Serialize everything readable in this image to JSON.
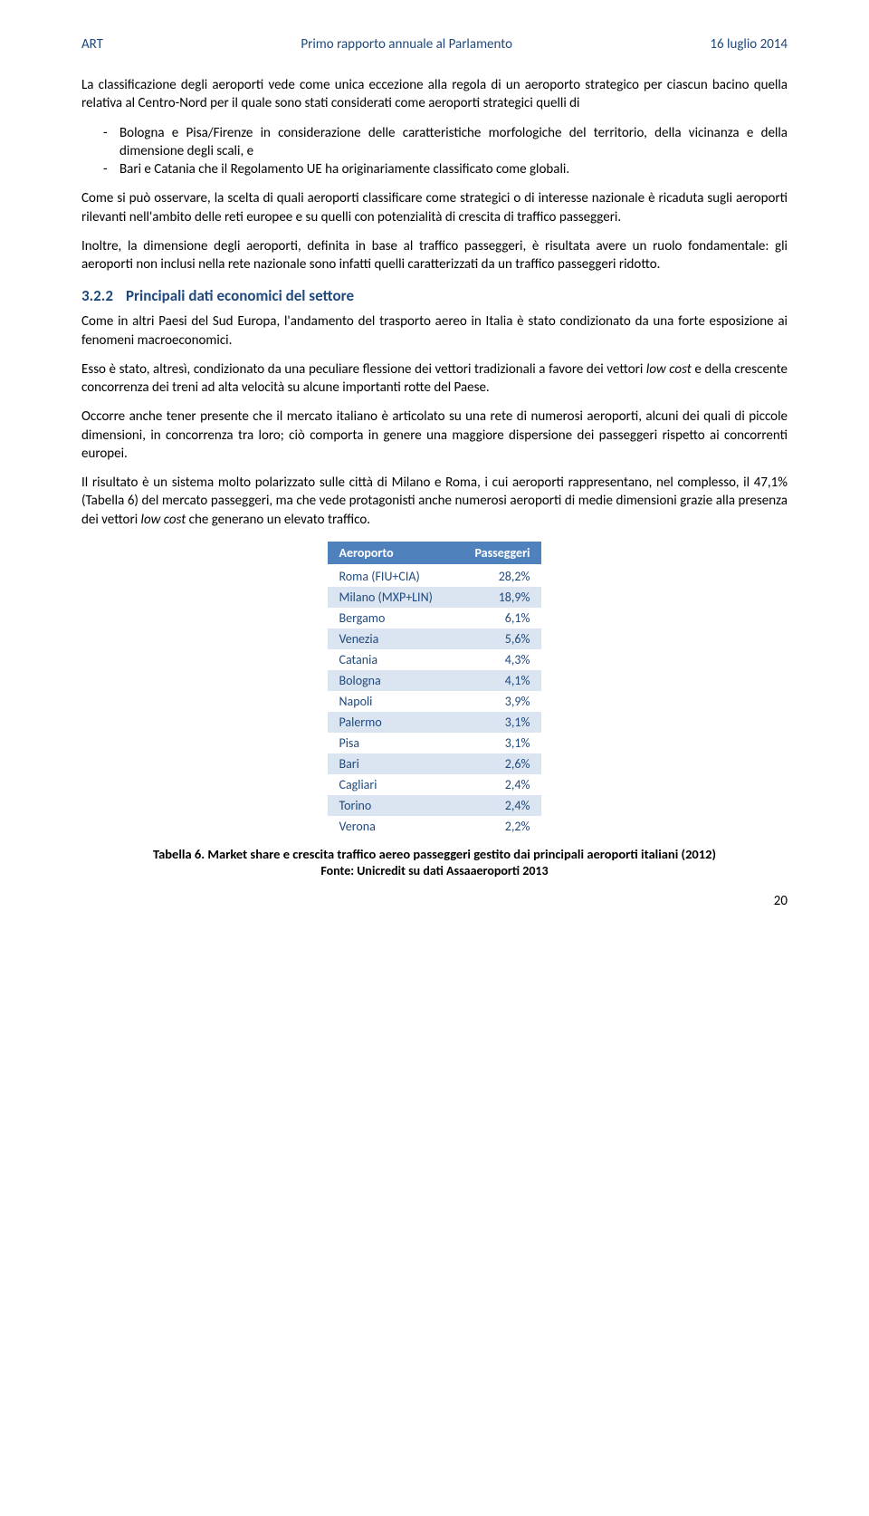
{
  "header": {
    "left": "ART",
    "center": "Primo rapporto annuale al Parlamento",
    "right": "16 luglio 2014"
  },
  "paragraphs": {
    "intro1": "La classificazione degli aeroporti vede come unica eccezione alla regola di un aeroporto strategico per ciascun bacino quella relativa al Centro-Nord per il quale sono stati considerati come aeroporti strategici quelli di",
    "bullet1": "Bologna e Pisa/Firenze in considerazione delle caratteristiche morfologiche del territorio, della vicinanza e della dimensione degli scali, e",
    "bullet2": "Bari e Catania che il Regolamento UE ha originariamente classificato come globali.",
    "p2": "Come si può osservare, la scelta di quali aeroporti classificare come strategici o di interesse nazionale è ricaduta sugli aeroporti rilevanti nell'ambito delle reti europee e su quelli con potenzialità di crescita di traffico passeggeri.",
    "p3": "Inoltre, la dimensione degli aeroporti, definita in base al traffico passeggeri, è risultata avere un ruolo fondamentale: gli aeroporti non inclusi nella rete nazionale sono infatti quelli caratterizzati da un traffico passeggeri ridotto.",
    "section_number": "3.2.2",
    "section_title": "Principali dati economici del settore",
    "p4": "Come in altri Paesi del Sud Europa, l'andamento del trasporto aereo in Italia è stato condizionato da una forte esposizione ai fenomeni macroeconomici.",
    "p5a": "Esso è stato, altresì, condizionato da una peculiare flessione dei vettori tradizionali a favore dei vettori ",
    "p5b": "low cost",
    "p5c": " e della crescente concorrenza dei treni ad alta velocità su alcune importanti rotte del Paese.",
    "p6": "Occorre anche tener presente che il mercato italiano è articolato su una rete di numerosi aeroporti, alcuni dei quali di piccole dimensioni, in concorrenza tra loro; ciò comporta in genere una maggiore dispersione dei passeggeri rispetto ai concorrenti europei.",
    "p7a": "Il risultato è un sistema molto polarizzato sulle città di Milano e Roma, i cui aeroporti rappresentano, nel complesso, il 47,1% (Tabella 6) del mercato passeggeri, ma che vede protagonisti anche numerosi aeroporti di medie dimensioni grazie alla presenza dei vettori ",
    "p7b": "low cost",
    "p7c": " che generano un elevato traffico."
  },
  "table": {
    "type": "table",
    "header_bg": "#4f81bd",
    "header_fg": "#ffffff",
    "row_alt_bg": "#dbe5f1",
    "cell_fg": "#1f497d",
    "columns": [
      "Aeroporto",
      "Passeggeri"
    ],
    "rows": [
      [
        "Roma (FIU+CIA)",
        "28,2%"
      ],
      [
        "Milano (MXP+LIN)",
        "18,9%"
      ],
      [
        "Bergamo",
        "6,1%"
      ],
      [
        "Venezia",
        "5,6%"
      ],
      [
        "Catania",
        "4,3%"
      ],
      [
        "Bologna",
        "4,1%"
      ],
      [
        "Napoli",
        "3,9%"
      ],
      [
        "Palermo",
        "3,1%"
      ],
      [
        "Pisa",
        "3,1%"
      ],
      [
        "Bari",
        "2,6%"
      ],
      [
        "Cagliari",
        "2,4%"
      ],
      [
        "Torino",
        "2,4%"
      ],
      [
        "Verona",
        "2,2%"
      ]
    ]
  },
  "caption": "Tabella 6. Market share e crescita traffico aereo passeggeri gestito dai principali aeroporti italiani (2012)",
  "source": "Fonte: Unicredit su dati Assaaeroporti 2013",
  "page_number": "20"
}
